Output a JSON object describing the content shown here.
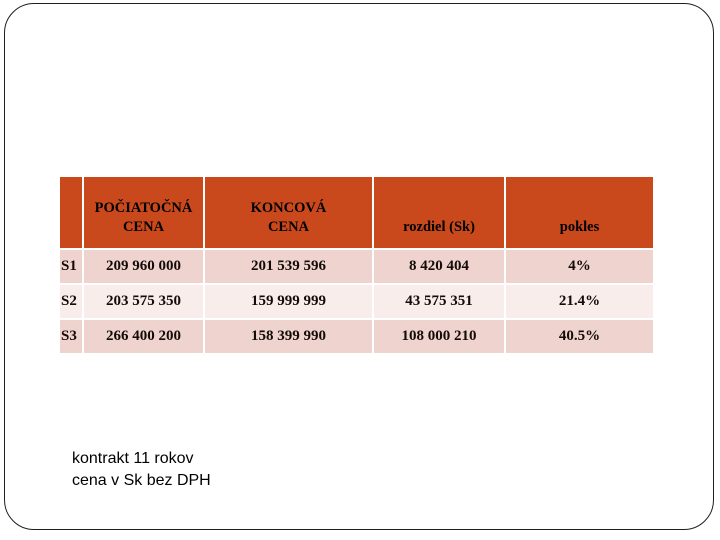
{
  "slide": {
    "caption": {
      "line1": "kontrakt 11 rokov",
      "line2": "cena v Sk bez DPH"
    }
  },
  "table": {
    "headers": [
      {
        "line1": "",
        "line2": ""
      },
      {
        "line1": "POČIATOČNÁ",
        "line2": "CENA"
      },
      {
        "line1": "KONCOVÁ",
        "line2": "CENA"
      },
      {
        "line1": "rozdiel (Sk)",
        "line2": ""
      },
      {
        "line1": "pokles",
        "line2": ""
      }
    ],
    "rows": [
      {
        "label": "S1",
        "initial_price": "209 960 000",
        "final_price": "201 539 596",
        "difference_sk": "8 420 404",
        "decrease_pct": "4%"
      },
      {
        "label": "S2",
        "initial_price": "203 575 350",
        "final_price": "159 999 999",
        "difference_sk": "43 575 351",
        "decrease_pct": "21.4%"
      },
      {
        "label": "S3",
        "initial_price": "266 400 200",
        "final_price": "158 399 990",
        "difference_sk": "108 000 210",
        "decrease_pct": "40.5%"
      }
    ]
  },
  "colors": {
    "header_bg": "#c9491d",
    "row_dark_bg": "#eed3cf",
    "row_light_bg": "#f8edeb",
    "gridline": "#ffffff",
    "frame_border": "#1f1f1f",
    "table_text": "#140a07"
  }
}
